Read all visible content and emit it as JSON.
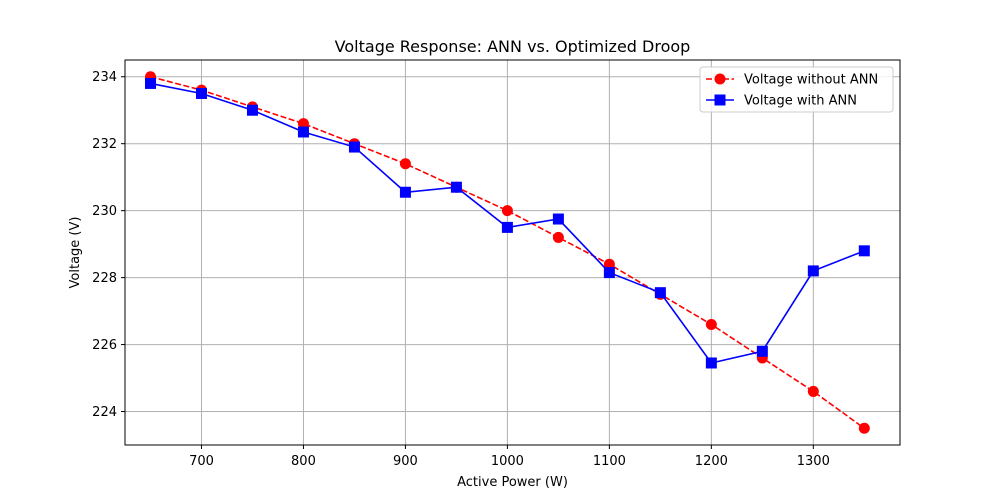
{
  "chart_data": {
    "type": "line",
    "title": "Voltage Response: ANN vs. Optimized Droop",
    "xlabel": "Active Power (W)",
    "ylabel": "Voltage (V)",
    "xlim": [
      625,
      1385
    ],
    "ylim": [
      223.0,
      234.5
    ],
    "xticks": [
      700,
      800,
      900,
      1000,
      1100,
      1200,
      1300
    ],
    "yticks": [
      224,
      226,
      228,
      230,
      232,
      234
    ],
    "grid": true,
    "legend_position": "top-right",
    "x": [
      650,
      700,
      750,
      800,
      850,
      900,
      950,
      1000,
      1050,
      1100,
      1150,
      1200,
      1250,
      1300,
      1350
    ],
    "series": [
      {
        "name": "Voltage without ANN",
        "color": "#ff0000",
        "line_style": "dashed",
        "marker": "circle",
        "values": [
          234.0,
          233.6,
          233.1,
          232.6,
          232.0,
          231.4,
          230.7,
          230.0,
          229.2,
          228.4,
          227.5,
          226.6,
          225.6,
          224.6,
          223.5
        ]
      },
      {
        "name": "Voltage with ANN",
        "color": "#0000ff",
        "line_style": "solid",
        "marker": "square",
        "values": [
          233.8,
          233.5,
          233.0,
          232.35,
          231.9,
          230.55,
          230.7,
          229.5,
          229.75,
          228.15,
          227.55,
          225.45,
          225.8,
          228.2,
          228.8
        ]
      }
    ]
  }
}
